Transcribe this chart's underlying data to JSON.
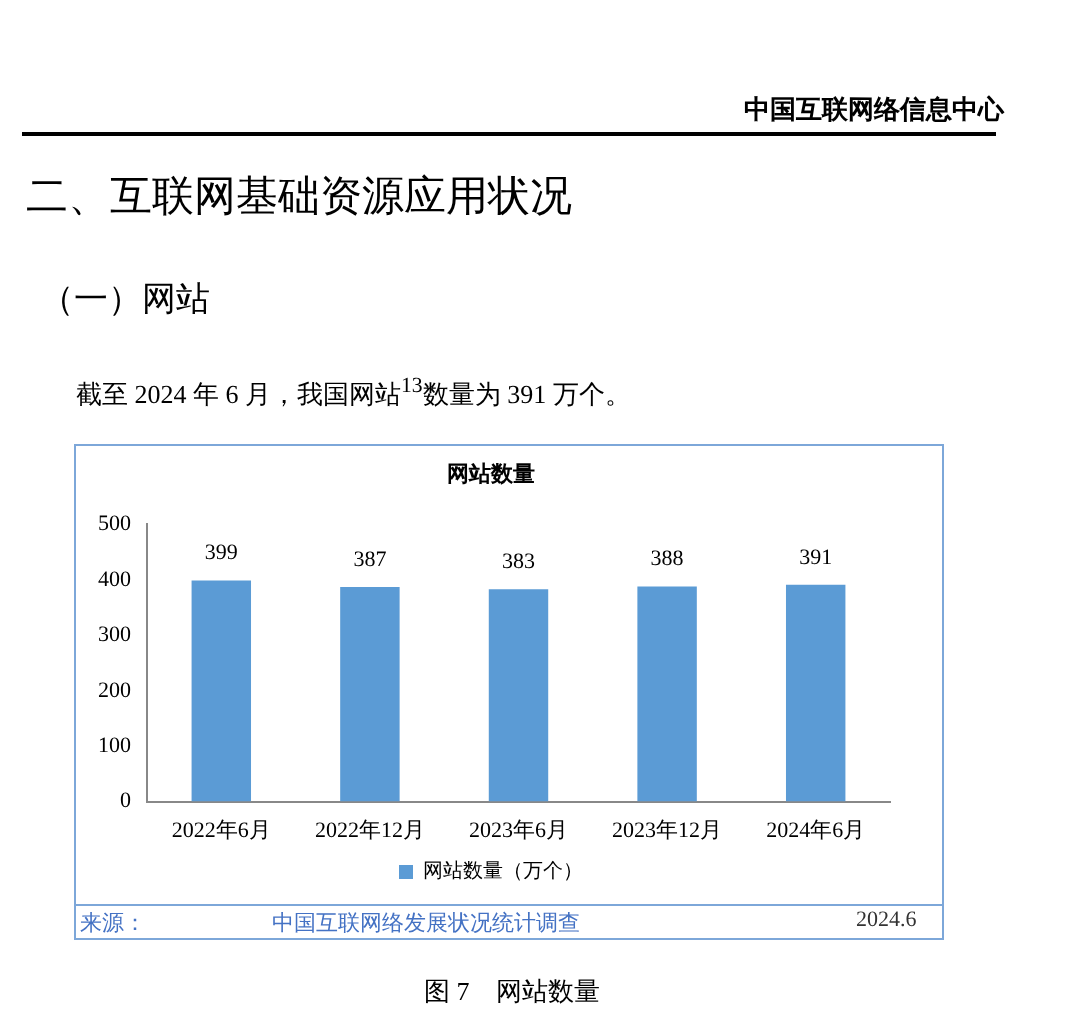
{
  "chart_data": {
    "type": "bar",
    "title": "网站数量",
    "categories": [
      "2022年6月",
      "2022年12月",
      "2023年6月",
      "2023年12月",
      "2024年6月"
    ],
    "series": [
      {
        "name": "网站数量（万个）",
        "color": "#5b9bd5",
        "values": [
          399,
          387,
          383,
          388,
          391
        ]
      }
    ],
    "ylim": [
      0,
      500
    ],
    "yticks": [
      0,
      100,
      200,
      300,
      400,
      500
    ],
    "grid": false,
    "legend": "bottom",
    "data_labels": true,
    "annotations": [
      "中国互联网络信息中心",
      "二、互联网基础资源应用状况",
      "（一）网站",
      "截至 2024 年 6 月，我国网站$^{13}$数量为 391 万个。",
      "来源：",
      "中国互联网络发展状况统计调查",
      "2024.6",
      "图 7　网站数量"
    ]
  }
}
